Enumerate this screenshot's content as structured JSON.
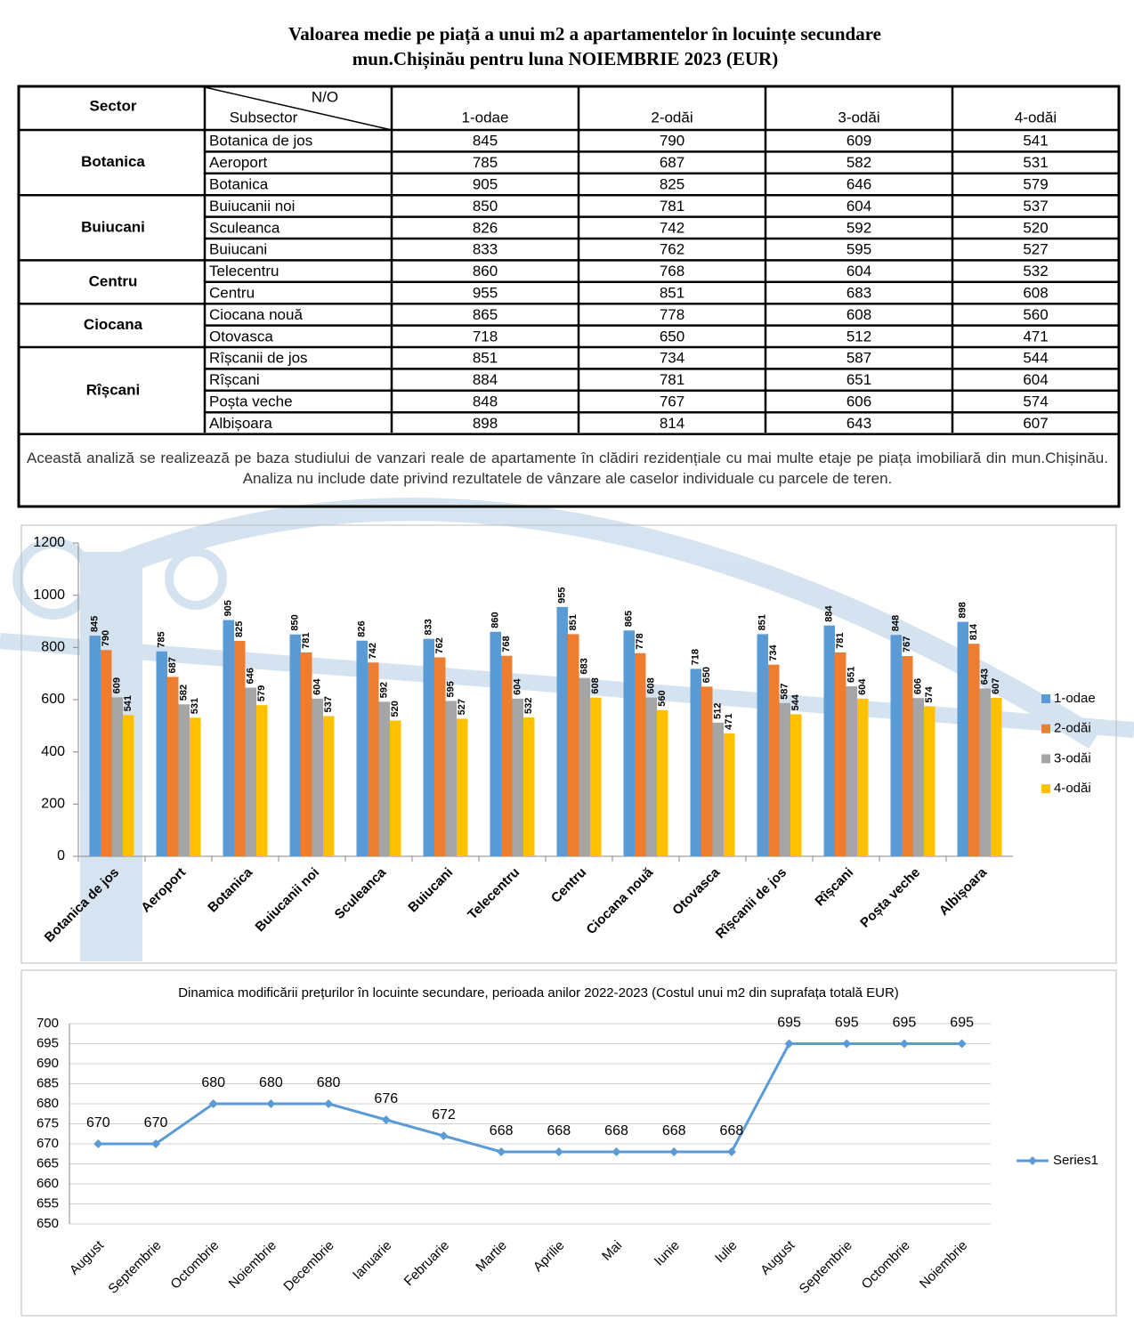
{
  "title": [
    "Valoarea medie pe piață a unui m2 a apartamentelor în locuințe secundare",
    "mun.Chișinău pentru luna NOIEMBRIE 2023 (EUR)"
  ],
  "table": {
    "header": {
      "sector": "Sector",
      "no": "N/O",
      "subsector": "Subsector",
      "columns": [
        "1-odae",
        "2-odăi",
        "3-odăi",
        "4-odăi"
      ]
    },
    "groups": [
      {
        "sector": "Botanica",
        "rows": [
          [
            "Botanica de jos",
            845,
            790,
            609,
            541
          ],
          [
            "Aeroport",
            785,
            687,
            582,
            531
          ],
          [
            "Botanica",
            905,
            825,
            646,
            579
          ]
        ]
      },
      {
        "sector": "Buiucani",
        "rows": [
          [
            "Buiucanii noi",
            850,
            781,
            604,
            537
          ],
          [
            "Sculeanca",
            826,
            742,
            592,
            520
          ],
          [
            "Buiucani",
            833,
            762,
            595,
            527
          ]
        ]
      },
      {
        "sector": "Centru",
        "rows": [
          [
            "Telecentru",
            860,
            768,
            604,
            532
          ],
          [
            "Centru",
            955,
            851,
            683,
            608
          ]
        ]
      },
      {
        "sector": "Ciocana",
        "rows": [
          [
            "Ciocana nouă",
            865,
            778,
            608,
            560
          ],
          [
            "Otovasca",
            718,
            650,
            512,
            471
          ]
        ]
      },
      {
        "sector": "Rîșcani",
        "rows": [
          [
            "Rîșcanii de jos",
            851,
            734,
            587,
            544
          ],
          [
            "Rîșcani",
            884,
            781,
            651,
            604
          ],
          [
            "Poșta veche",
            848,
            767,
            606,
            574
          ],
          [
            "Albișoara",
            898,
            814,
            643,
            607
          ]
        ]
      }
    ]
  },
  "note": "Această analiză se realizează pe baza studiului de vanzari reale de apartamente în clădiri rezidențiale cu mai multe etaje pe piața imobiliară din mun.Chișinău. Analiza nu include date privind rezultatele de vânzare ale caselor individuale cu parcele de teren.",
  "chart_data": [
    {
      "type": "bar",
      "categories": [
        "Botanica de jos",
        "Aeroport",
        "Botanica",
        "Buiucanii noi",
        "Sculeanca",
        "Buiucani",
        "Telecentru",
        "Centru",
        "Ciocana nouă",
        "Otovasca",
        "Rîșcanii de jos",
        "Rîșcani",
        "Poșta veche",
        "Albișoara"
      ],
      "series": [
        {
          "name": "1-odae",
          "color": "#5b9bd5",
          "values": [
            845,
            785,
            905,
            850,
            826,
            833,
            860,
            955,
            865,
            718,
            851,
            884,
            848,
            898
          ]
        },
        {
          "name": "2-odăi",
          "color": "#ed7d31",
          "values": [
            790,
            687,
            825,
            781,
            742,
            762,
            768,
            851,
            778,
            650,
            734,
            781,
            767,
            814
          ]
        },
        {
          "name": "3-odăi",
          "color": "#a5a5a5",
          "values": [
            609,
            582,
            646,
            604,
            592,
            595,
            604,
            683,
            608,
            512,
            587,
            651,
            606,
            643
          ]
        },
        {
          "name": "4-odăi",
          "color": "#ffc000",
          "values": [
            541,
            531,
            579,
            537,
            520,
            527,
            532,
            608,
            560,
            471,
            544,
            604,
            574,
            607
          ]
        }
      ],
      "ylim": [
        0,
        1200
      ],
      "yticks": [
        0,
        200,
        400,
        600,
        800,
        1000,
        1200
      ],
      "grid": false,
      "legend": "right"
    },
    {
      "type": "line",
      "title": "Dinamica modificării prețurilor în locuinte secundare, perioada anilor 2022-2023 (Costul unui m2 din suprafața totală EUR)",
      "categories": [
        "August",
        "Septembrie",
        "Octombrie",
        "Noiembrie",
        "Decembrie",
        "Ianuarie",
        "Februarie",
        "Martie",
        "Aprilie",
        "Mai",
        "Iunie",
        "Iulie",
        "August",
        "Septembrie",
        "Octombrie",
        "Noiembrie"
      ],
      "series": [
        {
          "name": "Series1",
          "color": "#5b9bd5",
          "values": [
            670,
            670,
            680,
            680,
            680,
            676,
            672,
            668,
            668,
            668,
            668,
            668,
            695,
            695,
            695,
            695
          ]
        }
      ],
      "ylim": [
        650,
        700
      ],
      "yticks": [
        650,
        655,
        660,
        665,
        670,
        675,
        680,
        685,
        690,
        695,
        700
      ],
      "grid": true,
      "legend": "right"
    }
  ]
}
